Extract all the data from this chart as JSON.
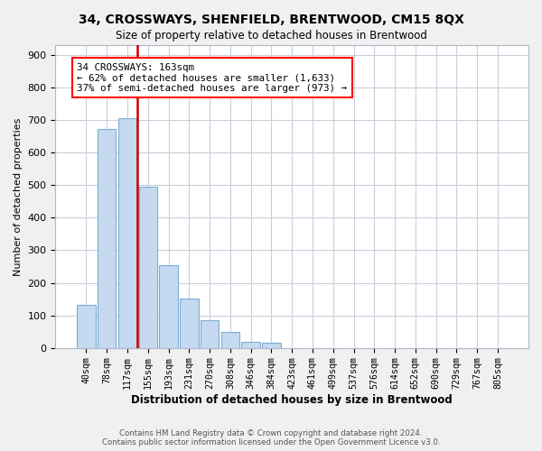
{
  "title": "34, CROSSWAYS, SHENFIELD, BRENTWOOD, CM15 8QX",
  "subtitle": "Size of property relative to detached houses in Brentwood",
  "xlabel": "Distribution of detached houses by size in Brentwood",
  "ylabel": "Number of detached properties",
  "bar_color": "#c5d9f0",
  "bar_edge_color": "#7bafd4",
  "vline_color": "#cc0000",
  "annotation_box_text": "34 CROSSWAYS: 163sqm\n← 62% of detached houses are smaller (1,633)\n37% of semi-detached houses are larger (973) →",
  "categories": [
    "40sqm",
    "78sqm",
    "117sqm",
    "155sqm",
    "193sqm",
    "231sqm",
    "270sqm",
    "308sqm",
    "346sqm",
    "384sqm",
    "423sqm",
    "461sqm",
    "499sqm",
    "537sqm",
    "576sqm",
    "614sqm",
    "652sqm",
    "690sqm",
    "729sqm",
    "767sqm",
    "805sqm"
  ],
  "bar_heights": [
    133,
    672,
    705,
    495,
    253,
    152,
    85,
    50,
    20,
    15,
    0,
    0,
    0,
    0,
    0,
    0,
    0,
    0,
    0,
    0,
    0
  ],
  "ylim": [
    0,
    930
  ],
  "yticks": [
    0,
    100,
    200,
    300,
    400,
    500,
    600,
    700,
    800,
    900
  ],
  "footer_text": "Contains HM Land Registry data © Crown copyright and database right 2024.\nContains public sector information licensed under the Open Government Licence v3.0.",
  "background_color": "#f0f0f0",
  "plot_bg_color": "#ffffff",
  "grid_color": "#c8d0dc"
}
